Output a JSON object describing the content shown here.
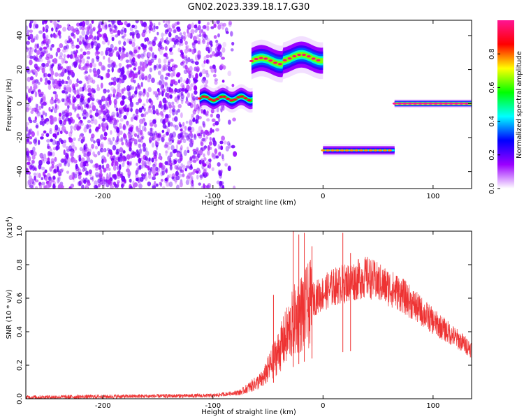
{
  "chart_data": [
    {
      "type": "heatmap",
      "title": "GN02.2023.339.18.17.G30",
      "xlabel": "Height of straight line (km)",
      "ylabel": "Frequency (Hz)",
      "xlim": [
        -270,
        135
      ],
      "ylim": [
        -50,
        49
      ],
      "x_ticks": [
        -200,
        -100,
        0,
        100
      ],
      "y_ticks": [
        -40,
        -20,
        0,
        20,
        40
      ],
      "colorbar": {
        "label": "Normalized spectral amplitude",
        "range": [
          0,
          1
        ],
        "ticks": [
          "0.0",
          "0.2",
          "0.4",
          "0.6",
          "0.8"
        ],
        "colors": [
          "#ffffff",
          "#9b00ff",
          "#0000ff",
          "#00ffff",
          "#00ff00",
          "#ffff00",
          "#ff0000",
          "#ff1493"
        ]
      },
      "regions": [
        {
          "name": "noise",
          "x": [
            -270,
            -80
          ],
          "y": [
            -50,
            49
          ],
          "amplitude": 0.12
        },
        {
          "name": "band_a",
          "x": [
            -112,
            -64
          ],
          "y": [
            0,
            6
          ],
          "amplitude": 0.55
        },
        {
          "name": "band_b",
          "x": [
            -65,
            0
          ],
          "y": [
            22,
            31
          ],
          "amplitude": 0.62
        },
        {
          "name": "band_c",
          "x": [
            0,
            65
          ],
          "y": [
            -29,
            -26
          ],
          "amplitude": 0.42
        },
        {
          "name": "band_d",
          "x": [
            65,
            135
          ],
          "y": [
            -1,
            1
          ],
          "amplitude": 0.95
        }
      ]
    },
    {
      "type": "line",
      "xlabel": "Height of straight line (km)",
      "ylabel": "SNR (10 * v/v)",
      "yscale_label": "(x10",
      "yscale_exp": "4",
      "yscale_close": ")",
      "xlim": [
        -270,
        135
      ],
      "ylim": [
        0,
        1.0
      ],
      "x_ticks": [
        -200,
        -100,
        0,
        100
      ],
      "y_ticks": [
        "0.0",
        "0.2",
        "0.4",
        "0.6",
        "0.8",
        "1.0"
      ],
      "series_color": "#ee3333",
      "envelope": [
        {
          "x": -270,
          "y": 0.01
        },
        {
          "x": -100,
          "y": 0.02
        },
        {
          "x": -75,
          "y": 0.04
        },
        {
          "x": -55,
          "y": 0.12
        },
        {
          "x": -40,
          "y": 0.3
        },
        {
          "x": -25,
          "y": 0.5
        },
        {
          "x": -10,
          "y": 0.6
        },
        {
          "x": 10,
          "y": 0.68
        },
        {
          "x": 40,
          "y": 0.74
        },
        {
          "x": 70,
          "y": 0.64
        },
        {
          "x": 100,
          "y": 0.47
        },
        {
          "x": 135,
          "y": 0.3
        }
      ],
      "spikes": [
        {
          "x": -45,
          "y": 0.62
        },
        {
          "x": -27,
          "y": 1.0
        },
        {
          "x": -22,
          "y": 0.98
        },
        {
          "x": -17,
          "y": 0.99
        },
        {
          "x": -10,
          "y": 0.91
        },
        {
          "x": 18,
          "y": 0.99
        },
        {
          "x": 25,
          "y": 0.87
        }
      ]
    }
  ]
}
